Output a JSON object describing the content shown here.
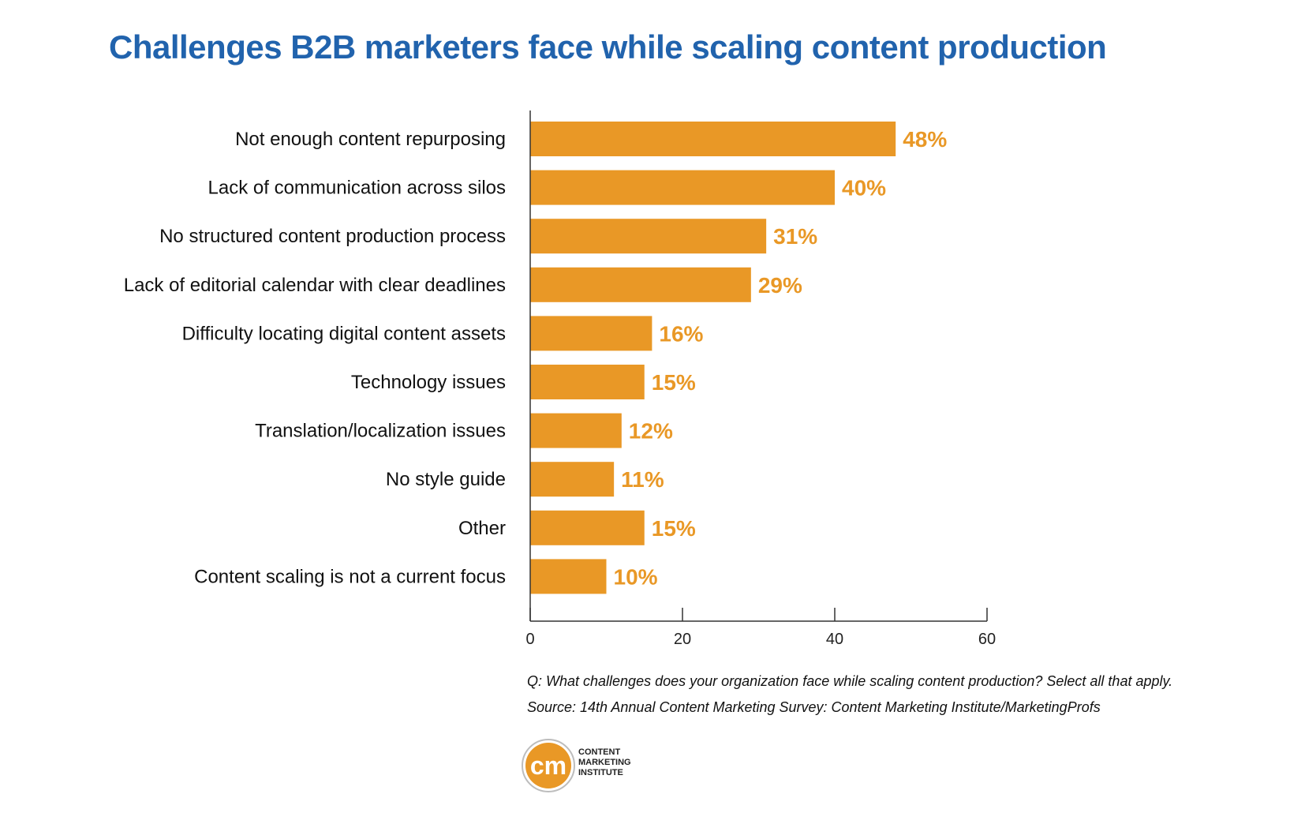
{
  "title": "Challenges B2B marketers face while scaling content production",
  "chart_data": {
    "type": "bar",
    "orientation": "horizontal",
    "categories": [
      "Not enough content repurposing",
      "Lack of communication across silos",
      "No structured content production process",
      "Lack of editorial calendar with clear deadlines",
      "Difficulty locating digital content assets",
      "Technology issues",
      "Translation/localization issues",
      "No style guide",
      "Other",
      "Content scaling is not a current focus"
    ],
    "values": [
      48,
      40,
      31,
      29,
      16,
      15,
      12,
      11,
      15,
      10
    ],
    "value_labels": [
      "48%",
      "40%",
      "31%",
      "29%",
      "16%",
      "15%",
      "12%",
      "11%",
      "15%",
      "10%"
    ],
    "xlim": [
      0,
      60
    ],
    "xticks": [
      "0",
      "20",
      "40",
      "60"
    ],
    "grid": false,
    "bar_color": "#e99826",
    "label_color": "#e99826"
  },
  "notes": {
    "question": "Q: What challenges does your organization face while scaling content production? Select all that apply.",
    "source": "Source: 14th Annual Content Marketing Survey: Content Marketing Institute/MarketingProfs"
  },
  "logo": {
    "mark": "cm",
    "line1": "CONTENT",
    "line2": "MARKETING",
    "line3": "INSTITUTE",
    "color": "#e99826"
  }
}
